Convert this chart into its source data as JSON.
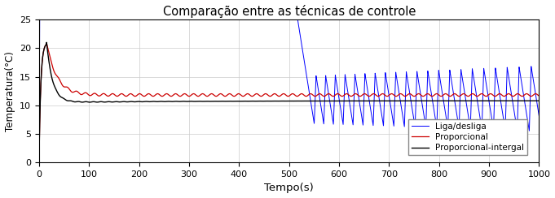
{
  "title": "Comparação entre as técnicas de controle",
  "xlabel": "Tempo(s)",
  "ylabel": "Temperatura(°C)",
  "xlim": [
    0,
    1000
  ],
  "ylim": [
    0,
    25
  ],
  "yticks": [
    0,
    5,
    10,
    15,
    20,
    25
  ],
  "xticks": [
    0,
    100,
    200,
    300,
    400,
    500,
    600,
    700,
    800,
    900,
    1000
  ],
  "legend": [
    "Liga/desliga",
    "Proporcional",
    "Proporcional-intergal"
  ],
  "colors": {
    "liga_desliga": "#0000FF",
    "proporcional": "#CC0000",
    "proporcional_integral": "#000000"
  },
  "setpoint_onoff": 10.5,
  "setpoint_prop": 11.8,
  "setpoint_pi": 10.5,
  "initial_temp": 1.0,
  "spike_peak": 21.0,
  "background": "#FFFFFF",
  "grid_color": "#CCCCCC"
}
